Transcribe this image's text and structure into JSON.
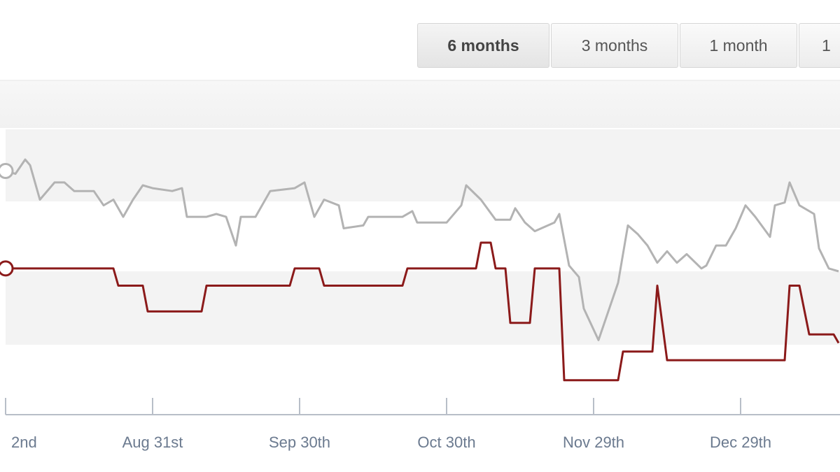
{
  "buttons": [
    "6 months",
    "3 months",
    "1 month",
    "1"
  ],
  "chart_data": {
    "type": "line",
    "xlim": [
      0,
      170
    ],
    "ylim": [
      0,
      100
    ],
    "xticks": [
      {
        "value": 0,
        "label": "2nd"
      },
      {
        "value": 30,
        "label": "Aug 31st"
      },
      {
        "value": 60,
        "label": "Sep 30th"
      },
      {
        "value": 90,
        "label": "Oct 30th"
      },
      {
        "value": 120,
        "label": "Nov 29th"
      },
      {
        "value": 150,
        "label": "Dec 29th"
      }
    ],
    "series": [
      {
        "color": "#b3b3b3",
        "x": [
          0,
          2,
          4,
          5,
          7,
          10,
          12,
          14,
          18,
          20,
          22,
          24,
          26,
          28,
          30,
          34,
          36,
          37,
          41,
          43,
          45,
          47,
          48,
          51,
          54,
          59,
          61,
          63,
          65,
          68,
          69,
          73,
          74,
          81,
          83,
          84,
          90,
          93,
          94,
          97,
          100,
          103,
          104,
          106,
          108,
          112,
          113,
          115,
          117,
          118,
          121,
          125,
          127,
          129,
          131,
          133,
          135,
          137,
          139,
          142,
          143,
          145,
          147,
          149,
          151,
          153,
          156,
          157,
          159,
          160,
          162,
          165,
          166,
          168,
          170
        ],
        "values": [
          85,
          84,
          89,
          87,
          75,
          81,
          81,
          78,
          78,
          73,
          75,
          69,
          75,
          80,
          79,
          78,
          79,
          69,
          69,
          70,
          69,
          59,
          69,
          69,
          78,
          79,
          81,
          69,
          75,
          73,
          65,
          66,
          69,
          69,
          71,
          67,
          67,
          73,
          80,
          75,
          68,
          68,
          72,
          67,
          64,
          67,
          70,
          52,
          48,
          37,
          26,
          46,
          66,
          63,
          59,
          53,
          57,
          53,
          56,
          51,
          52,
          59,
          59,
          65,
          73,
          69,
          62,
          73,
          74,
          81,
          73,
          70,
          58,
          51,
          50
        ]
      },
      {
        "color": "#8b1a1a",
        "x": [
          0,
          22,
          23,
          28,
          29,
          40,
          41,
          58,
          59,
          64,
          65,
          81,
          82,
          96,
          97,
          99,
          100,
          102,
          103,
          107,
          108,
          113,
          114,
          125,
          126,
          132,
          133,
          135,
          159,
          160,
          162,
          164,
          169,
          170
        ],
        "values": [
          51,
          51,
          45,
          45,
          36,
          36,
          45,
          45,
          51,
          51,
          45,
          45,
          51,
          51,
          60,
          60,
          51,
          51,
          32,
          32,
          51,
          51,
          12,
          12,
          22,
          22,
          45,
          19,
          19,
          45,
          45,
          28,
          28,
          25
        ]
      }
    ]
  }
}
